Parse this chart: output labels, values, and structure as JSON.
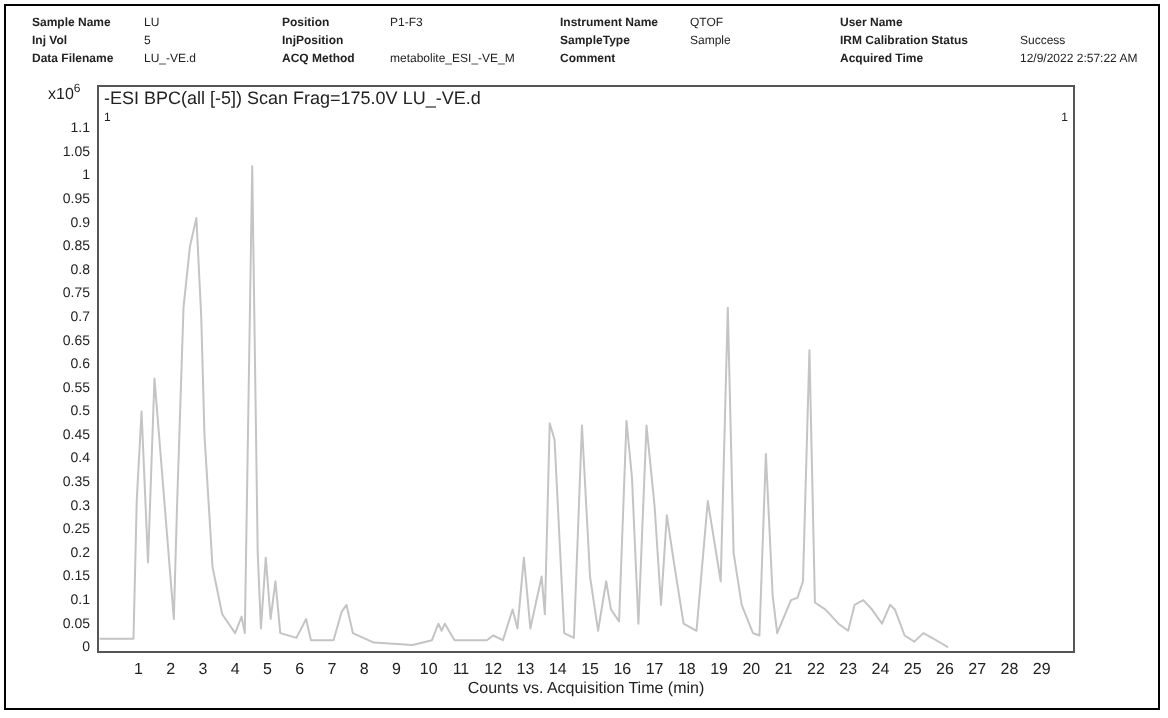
{
  "chart_data": {
    "type": "line",
    "title": "-ESI BPC(all [-5]) Scan Frag=175.0V LU_-VE.d",
    "xlabel": "Counts vs. Acquisition Time (min)",
    "ylabel": "x10$^{6}$",
    "annotations": [
      "Sample Name\nInj Vol\nData Filename",
      "LU\n5\nLU_-VE.d",
      "Position\nInjPosition\nACQ Method",
      "P1-F3\n\nmetabolite_ESI_-VE_M",
      "Instrument Name\nSampleType\nComment",
      "QTOF\nSample\n",
      "User Name\nIRM Calibration Status\nAcquired Time",
      "\nSuccess\n12/9/2022 2:57:22 AM",
      "1",
      "1"
    ],
    "series": [
      {
        "color": "#c4c4c4",
        "x": [
          -0.2,
          0.85,
          0.95,
          1.1,
          1.3,
          1.5,
          2.1,
          2.2,
          2.4,
          2.6,
          2.8,
          2.95,
          3.05,
          3.3,
          3.6,
          4.0,
          4.2,
          4.3,
          4.53,
          4.7,
          4.8,
          4.95,
          5.1,
          5.25,
          5.4,
          5.9,
          6.2,
          6.35,
          7.05,
          7.3,
          7.45,
          7.65,
          8.3,
          9.5,
          10.1,
          10.3,
          10.4,
          10.5,
          10.8,
          11.8,
          12.0,
          12.3,
          12.6,
          12.75,
          12.95,
          13.15,
          13.5,
          13.6,
          13.75,
          13.9,
          14.2,
          14.5,
          14.75,
          15.0,
          15.25,
          15.5,
          15.65,
          15.9,
          16.13,
          16.3,
          16.5,
          16.75,
          17.0,
          17.2,
          17.38,
          17.6,
          17.9,
          18.3,
          18.65,
          19.05,
          19.27,
          19.45,
          19.7,
          20.05,
          20.25,
          20.45,
          20.66,
          20.8,
          21.23,
          21.43,
          21.6,
          21.8,
          21.97,
          22.3,
          22.7,
          23.0,
          23.2,
          23.47,
          23.74,
          24.05,
          24.3,
          24.45,
          24.75,
          25.05,
          25.33,
          25.6,
          25.9,
          26.1
        ],
        "values": [
          0.018,
          0.018,
          0.31,
          0.5,
          0.18,
          0.57,
          0.06,
          0.3,
          0.72,
          0.85,
          0.91,
          0.7,
          0.45,
          0.17,
          0.07,
          0.03,
          0.065,
          0.03,
          1.02,
          0.2,
          0.04,
          0.19,
          0.06,
          0.14,
          0.03,
          0.02,
          0.06,
          0.015,
          0.015,
          0.075,
          0.09,
          0.03,
          0.01,
          0.005,
          0.015,
          0.05,
          0.035,
          0.05,
          0.015,
          0.015,
          0.025,
          0.015,
          0.08,
          0.04,
          0.19,
          0.04,
          0.15,
          0.07,
          0.475,
          0.44,
          0.03,
          0.02,
          0.47,
          0.15,
          0.035,
          0.14,
          0.08,
          0.055,
          0.48,
          0.36,
          0.05,
          0.47,
          0.3,
          0.09,
          0.28,
          0.18,
          0.05,
          0.035,
          0.31,
          0.14,
          0.72,
          0.2,
          0.09,
          0.03,
          0.025,
          0.41,
          0.11,
          0.03,
          0.1,
          0.105,
          0.14,
          0.63,
          0.095,
          0.08,
          0.05,
          0.035,
          0.09,
          0.1,
          0.08,
          0.05,
          0.09,
          0.08,
          0.025,
          0.012,
          0.03,
          0.02,
          0.008,
          0
        ]
      }
    ],
    "xlim": [
      -0.25,
      30
    ],
    "xticks": [
      1,
      2,
      3,
      4,
      5,
      6,
      7,
      8,
      9,
      10,
      11,
      12,
      13,
      14,
      15,
      16,
      17,
      18,
      19,
      20,
      21,
      22,
      23,
      24,
      25,
      26,
      27,
      28,
      29
    ],
    "ylim": [
      -0.01,
      1.19
    ],
    "yticks": [
      0,
      0.05,
      0.1,
      0.15,
      0.2,
      0.25,
      0.3,
      0.35,
      0.4,
      0.45,
      0.5,
      0.55,
      0.6,
      0.65,
      0.7,
      0.75,
      0.8,
      0.85,
      0.9,
      0.95,
      1,
      1.05,
      1.1
    ],
    "grid": false,
    "legend": false,
    "marker": "none",
    "line_style": "solid"
  }
}
